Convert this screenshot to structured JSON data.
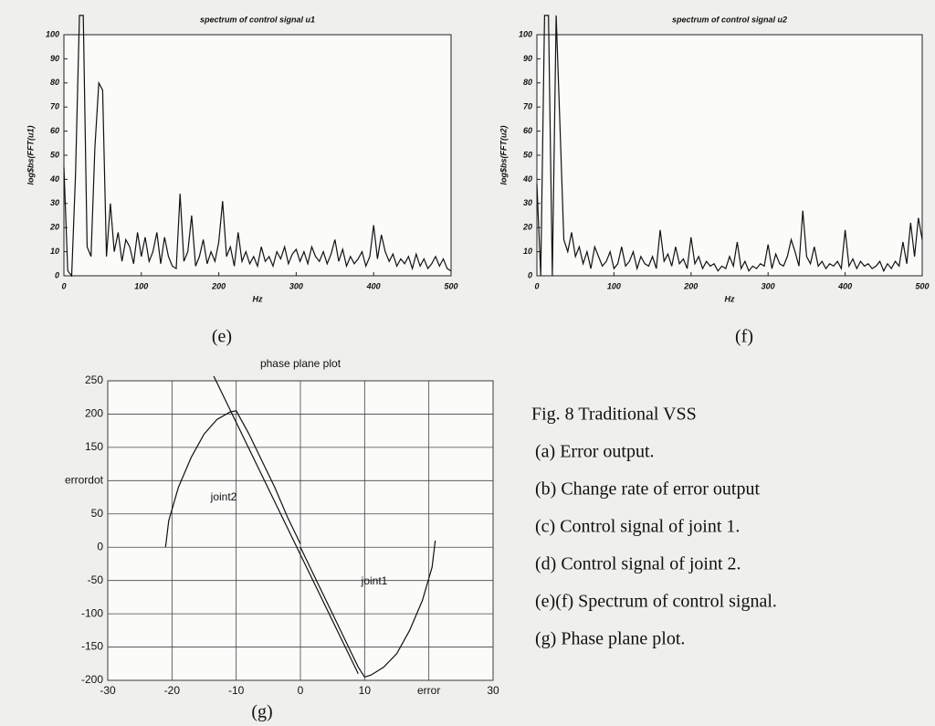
{
  "chart_data": [
    {
      "type": "line",
      "title": "spectrum of control signal u1",
      "xlabel": "Hz",
      "ylabel": "log$bs(FFT(u1)",
      "color": "#111111",
      "grid": false,
      "xlim": [
        0,
        500
      ],
      "ylim": [
        0,
        100
      ],
      "xticks": [
        0,
        100,
        200,
        300,
        400,
        500
      ],
      "yticks": [
        0,
        10,
        20,
        30,
        40,
        50,
        60,
        70,
        80,
        90,
        100
      ],
      "x": [
        0,
        5,
        10,
        15,
        20,
        25,
        30,
        35,
        40,
        45,
        50,
        55,
        60,
        65,
        70,
        75,
        80,
        85,
        90,
        95,
        100,
        105,
        110,
        115,
        120,
        125,
        130,
        135,
        140,
        145,
        150,
        155,
        160,
        165,
        170,
        175,
        180,
        185,
        190,
        195,
        200,
        205,
        210,
        215,
        220,
        225,
        230,
        235,
        240,
        245,
        250,
        255,
        260,
        265,
        270,
        275,
        280,
        285,
        290,
        295,
        300,
        305,
        310,
        315,
        320,
        325,
        330,
        335,
        340,
        345,
        350,
        355,
        360,
        365,
        370,
        375,
        380,
        385,
        390,
        395,
        400,
        405,
        410,
        415,
        420,
        425,
        430,
        435,
        440,
        445,
        450,
        455,
        460,
        465,
        470,
        475,
        480,
        485,
        490,
        495,
        500
      ],
      "values": [
        45,
        2,
        0,
        42,
        108,
        108,
        12,
        8,
        53,
        80,
        77,
        8,
        30,
        10,
        18,
        6,
        15,
        12,
        5,
        18,
        8,
        16,
        6,
        10,
        18,
        5,
        16,
        8,
        4,
        3,
        34,
        6,
        10,
        25,
        4,
        8,
        15,
        5,
        10,
        6,
        14,
        31,
        8,
        12,
        4,
        18,
        6,
        10,
        5,
        8,
        4,
        12,
        6,
        8,
        4,
        10,
        7,
        12,
        5,
        9,
        11,
        6,
        10,
        5,
        12,
        8,
        6,
        10,
        5,
        9,
        15,
        6,
        11,
        4,
        8,
        5,
        7,
        10,
        4,
        8,
        21,
        7,
        17,
        10,
        6,
        9,
        4,
        7,
        5,
        8,
        3,
        9,
        4,
        7,
        3,
        5,
        8,
        4,
        7,
        3,
        2
      ]
    },
    {
      "type": "line",
      "title": "spectrum of control signal u2",
      "xlabel": "Hz",
      "ylabel": "log$bs(FFT(u2)",
      "color": "#111111",
      "grid": false,
      "xlim": [
        0,
        500
      ],
      "ylim": [
        0,
        100
      ],
      "xticks": [
        0,
        100,
        200,
        300,
        400,
        500
      ],
      "yticks": [
        0,
        10,
        20,
        30,
        40,
        50,
        60,
        70,
        80,
        90,
        100
      ],
      "x": [
        0,
        5,
        10,
        15,
        20,
        25,
        30,
        35,
        40,
        45,
        50,
        55,
        60,
        65,
        70,
        75,
        80,
        85,
        90,
        95,
        100,
        105,
        110,
        115,
        120,
        125,
        130,
        135,
        140,
        145,
        150,
        155,
        160,
        165,
        170,
        175,
        180,
        185,
        190,
        195,
        200,
        205,
        210,
        215,
        220,
        225,
        230,
        235,
        240,
        245,
        250,
        255,
        260,
        265,
        270,
        275,
        280,
        285,
        290,
        295,
        300,
        305,
        310,
        315,
        320,
        325,
        330,
        335,
        340,
        345,
        350,
        355,
        360,
        365,
        370,
        375,
        380,
        385,
        390,
        395,
        400,
        405,
        410,
        415,
        420,
        425,
        430,
        435,
        440,
        445,
        450,
        455,
        460,
        465,
        470,
        475,
        480,
        485,
        490,
        495,
        500
      ],
      "values": [
        38,
        0,
        108,
        108,
        0,
        108,
        62,
        15,
        10,
        18,
        8,
        12,
        5,
        10,
        3,
        12,
        8,
        4,
        6,
        10,
        3,
        5,
        12,
        4,
        6,
        10,
        3,
        8,
        5,
        4,
        8,
        3,
        19,
        6,
        9,
        4,
        12,
        5,
        7,
        3,
        16,
        5,
        8,
        3,
        6,
        4,
        5,
        2,
        4,
        3,
        8,
        4,
        14,
        3,
        6,
        2,
        4,
        3,
        5,
        4,
        13,
        3,
        9,
        5,
        4,
        8,
        15,
        10,
        4,
        27,
        8,
        5,
        12,
        4,
        6,
        3,
        5,
        4,
        6,
        3,
        19,
        4,
        7,
        3,
        6,
        4,
        5,
        3,
        4,
        6,
        2,
        5,
        3,
        6,
        4,
        14,
        5,
        22,
        8,
        24,
        15
      ]
    },
    {
      "type": "line",
      "title": "phase plane plot",
      "grid": true,
      "xlim": [
        -30,
        30
      ],
      "ylim": [
        -200,
        250
      ],
      "xticks": [
        -30,
        -20,
        -10,
        0,
        10,
        {
          "value": 20,
          "label": "error"
        },
        30
      ],
      "yticks": [
        -200,
        -150,
        -100,
        -50,
        0,
        50,
        {
          "value": 100,
          "label": "errordot"
        },
        150,
        200,
        250
      ],
      "series": [
        {
          "name": "joint2",
          "color": "#111111",
          "x": [
            -21,
            -20.5,
            -19,
            -17,
            -15,
            -13,
            -11,
            -10,
            -8,
            -6,
            -4,
            -2,
            0
          ],
          "values": [
            0,
            40,
            90,
            135,
            170,
            192,
            203,
            205,
            170,
            130,
            90,
            45,
            5
          ]
        },
        {
          "name": "joint1",
          "color": "#111111",
          "x": [
            21,
            20.5,
            19,
            17,
            15,
            13,
            11,
            10,
            9,
            7,
            5,
            3,
            1,
            0
          ],
          "values": [
            10,
            -30,
            -80,
            -125,
            -160,
            -180,
            -192,
            -195,
            -180,
            -140,
            -100,
            -60,
            -20,
            0
          ]
        },
        {
          "color": "#111111",
          "x": [
            -13.5,
            9
          ],
          "values": [
            257,
            -190
          ]
        }
      ]
    }
  ],
  "panel_labels": [
    "(e)",
    "(f)",
    "(g)"
  ],
  "caption": {
    "title": "Fig. 8 Traditional VSS",
    "items": [
      "(a)  Error output.",
      "(b) Change rate of error output",
      "(c)  Control signal of joint 1.",
      "(d)  Control signal of joint 2.",
      "(e)(f) Spectrum of control signal.",
      "(g) Phase plane plot."
    ]
  }
}
